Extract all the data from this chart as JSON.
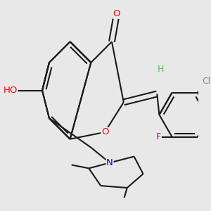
{
  "background_color": "#e8e8e8",
  "bond_color": "#1a1a1a",
  "bond_width": 1.5,
  "dbo": 0.018,
  "atom_colors": {
    "O": "#ff0000",
    "H": "#6aaa6a",
    "N": "#0000ee",
    "Cl": "#55aa55",
    "F": "#bb00bb"
  },
  "figsize": [
    3.0,
    3.0
  ],
  "dpi": 100
}
